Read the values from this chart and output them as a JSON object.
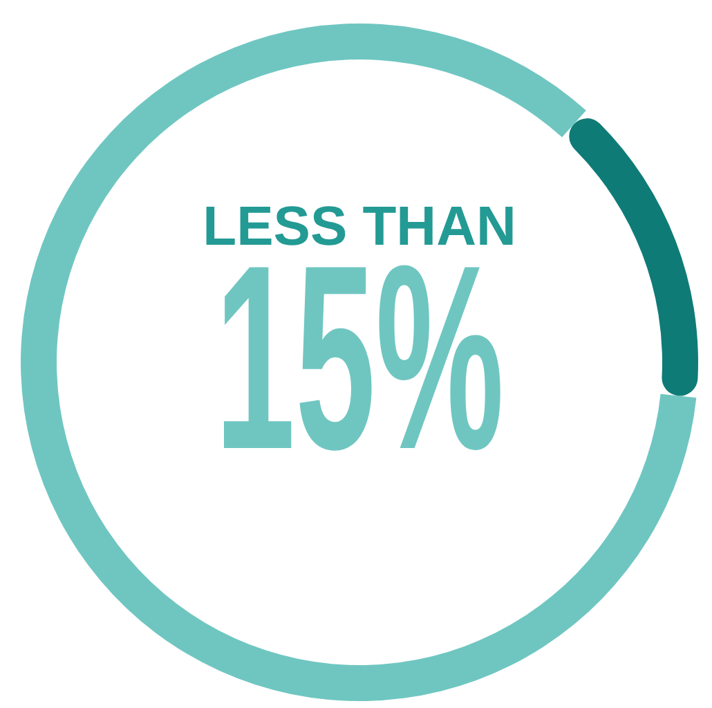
{
  "chart_data": {
    "type": "donut",
    "title": "LESS THAN",
    "annotations": [
      "15%"
    ],
    "categories": [
      null,
      null
    ],
    "values": [
      15,
      85
    ],
    "colors": [
      "#0f7b77",
      "#6fc6c1"
    ]
  }
}
